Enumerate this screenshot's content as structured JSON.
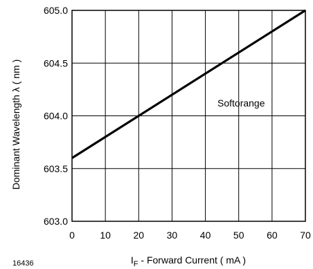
{
  "chart_data": {
    "type": "line",
    "xlabel_main": "I",
    "xlabel_sub": "F",
    "xlabel_rest": " - Forward Current ( mA )",
    "ylabel": "Dominant Wavelength λ ( nm )",
    "annotation": "Softorange",
    "figure_id": "16436",
    "xlim": [
      0,
      70
    ],
    "ylim": [
      603.0,
      605.0
    ],
    "x_ticks": [
      0,
      10,
      20,
      30,
      40,
      50,
      60,
      70
    ],
    "y_ticks": [
      "603.0",
      "603.5",
      "604.0",
      "604.5",
      "605.0"
    ],
    "grid": true,
    "series": [
      {
        "x": [
          0,
          70
        ],
        "y": [
          603.6,
          605.0
        ]
      }
    ],
    "colors": {
      "line": "#000000",
      "grid": "#000000",
      "frame": "#000000"
    }
  }
}
